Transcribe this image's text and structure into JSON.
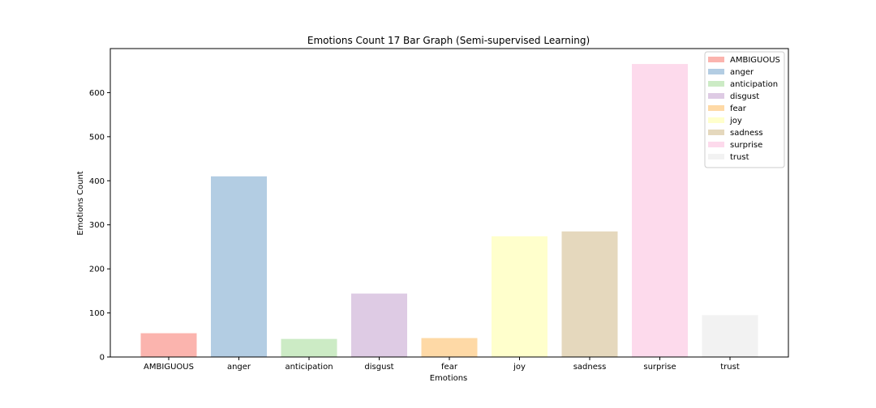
{
  "chart_data": {
    "type": "bar",
    "title": "Emotions Count 17 Bar Graph (Semi-supervised Learning)",
    "xlabel": "Emotions",
    "ylabel": "Emotions Count",
    "ylim": [
      0,
      700
    ],
    "yticks": [
      0,
      100,
      200,
      300,
      400,
      500,
      600
    ],
    "categories": [
      "AMBIGUOUS",
      "anger",
      "anticipation",
      "disgust",
      "fear",
      "joy",
      "sadness",
      "surprise",
      "trust"
    ],
    "values": [
      54,
      410,
      41,
      144,
      43,
      274,
      285,
      665,
      95
    ],
    "colors": [
      "#fbb4ae",
      "#b3cde3",
      "#ccebc5",
      "#decbe4",
      "#fed9a6",
      "#ffffcc",
      "#e5d8bd",
      "#fddaec",
      "#f2f2f2"
    ],
    "legend": {
      "placement": "top-right",
      "entries": [
        "AMBIGUOUS",
        "anger",
        "anticipation",
        "disgust",
        "fear",
        "joy",
        "sadness",
        "surprise",
        "trust"
      ]
    },
    "grid": false
  }
}
